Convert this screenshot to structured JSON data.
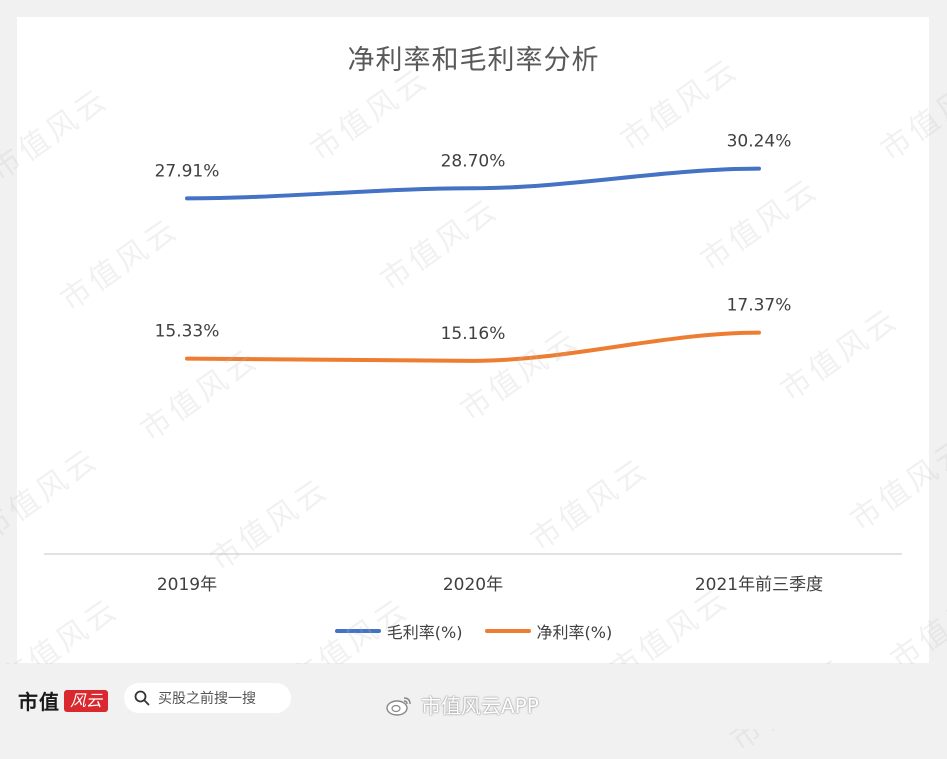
{
  "chart_data": {
    "type": "line",
    "title": "净利率和毛利率分析",
    "categories": [
      "2019年",
      "2020年",
      "2021年前三季度"
    ],
    "series": [
      {
        "name": "毛利率(%)",
        "values": [
          27.91,
          28.7,
          30.24
        ],
        "labels": [
          "27.91%",
          "28.70%",
          "30.24%"
        ],
        "color": "#4472c4"
      },
      {
        "name": "净利率(%)",
        "values": [
          15.33,
          15.16,
          17.37
        ],
        "labels": [
          "15.33%",
          "15.16%",
          "17.37%"
        ],
        "color": "#ed7d31"
      }
    ],
    "ylim": [
      0,
      35
    ],
    "grid": false,
    "legend": "bottom"
  },
  "watermark": "市值风云",
  "footer": {
    "logo_text": "市值",
    "logo_mark": "风云",
    "search_text": "买股之前搜一搜",
    "search_icon": "search-icon",
    "weibo_text": "市值风云APP",
    "weibo_icon": "weibo-icon"
  }
}
